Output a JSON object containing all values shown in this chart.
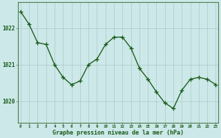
{
  "x": [
    0,
    1,
    2,
    3,
    4,
    5,
    6,
    7,
    8,
    9,
    10,
    11,
    12,
    13,
    14,
    15,
    16,
    17,
    18,
    19,
    20,
    21,
    22,
    23
  ],
  "y": [
    1022.45,
    1022.1,
    1021.6,
    1021.55,
    1021.0,
    1020.65,
    1020.45,
    1020.55,
    1021.0,
    1021.15,
    1021.55,
    1021.75,
    1021.75,
    1021.45,
    1020.9,
    1020.6,
    1020.25,
    1019.95,
    1019.8,
    1020.3,
    1020.6,
    1020.65,
    1020.6,
    1020.45
  ],
  "bg_color": "#cce8e8",
  "line_color": "#1a5c1a",
  "marker_color": "#1a5c1a",
  "grid_color": "#b0cccc",
  "border_color": "#4a7a4a",
  "xlabel": "Graphe pression niveau de la mer (hPa)",
  "xlabel_color": "#1a5a1a",
  "tick_label_color": "#1a5a1a",
  "ytick_labels": [
    1020,
    1021,
    1022
  ],
  "ylim": [
    1019.4,
    1022.7
  ],
  "xlim": [
    -0.3,
    23.3
  ]
}
